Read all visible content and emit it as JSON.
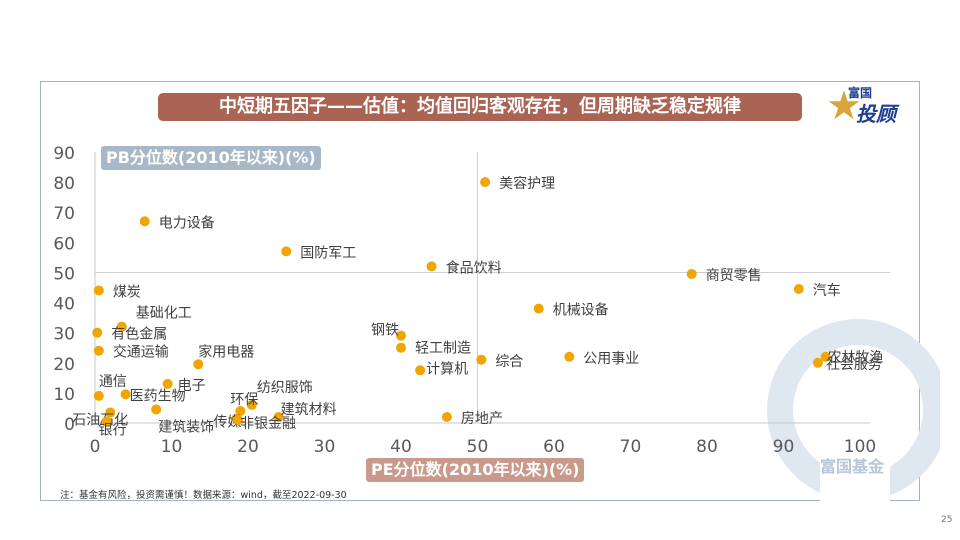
{
  "title": "中短期五因子——估值：均值回归客观存在，但周期缺乏稳定规律",
  "logo": {
    "top": "富国",
    "main": "投顾"
  },
  "footnote": "注：基金有风险，投资需谨慎！数据来源：wind，截至2022-09-30",
  "page_number": "25",
  "watermark_text": "富国基金",
  "colors": {
    "point": "#f0a500",
    "title_bg": "#a96454",
    "ylabel_bg": "#a8b8c8",
    "xlabel_bg": "#c99a8c"
  },
  "chart_data": {
    "type": "scatter",
    "xlabel": "PE分位数(2010年以来)(%)",
    "ylabel": "PB分位数(2010年以来)(%)",
    "xlim": [
      0,
      100
    ],
    "ylim": [
      0,
      90
    ],
    "x_ticks": [
      0,
      10,
      20,
      30,
      40,
      50,
      60,
      70,
      80,
      90,
      100
    ],
    "y_ticks": [
      0,
      10,
      20,
      30,
      40,
      50,
      60,
      70,
      80,
      90
    ],
    "reference_lines": {
      "x": 50,
      "y": 50
    },
    "grid": false,
    "points": [
      {
        "label": "美容护理",
        "x": 51,
        "y": 80
      },
      {
        "label": "电力设备",
        "x": 6.5,
        "y": 67
      },
      {
        "label": "国防军工",
        "x": 25,
        "y": 57
      },
      {
        "label": "食品饮料",
        "x": 44,
        "y": 52
      },
      {
        "label": "商贸零售",
        "x": 78,
        "y": 49.5
      },
      {
        "label": "汽车",
        "x": 92,
        "y": 44.5
      },
      {
        "label": "煤炭",
        "x": 0.5,
        "y": 44
      },
      {
        "label": "机械设备",
        "x": 58,
        "y": 38
      },
      {
        "label": "基础化工",
        "x": 3.5,
        "y": 32
      },
      {
        "label": "有色金属",
        "x": 0.3,
        "y": 30
      },
      {
        "label": "钢铁",
        "x": 40,
        "y": 29
      },
      {
        "label": "家用电器",
        "x": 13.5,
        "y": 19.5
      },
      {
        "label": "交通运输",
        "x": 0.5,
        "y": 24
      },
      {
        "label": "轻工制造",
        "x": 40,
        "y": 25
      },
      {
        "label": "综合",
        "x": 50.5,
        "y": 21
      },
      {
        "label": "公用事业",
        "x": 62,
        "y": 22
      },
      {
        "label": "农林牧渔",
        "x": 95.5,
        "y": 22
      },
      {
        "label": "社会服务",
        "x": 94.5,
        "y": 20
      },
      {
        "label": "计算机",
        "x": 42.5,
        "y": 17.5
      },
      {
        "label": "电子",
        "x": 9.5,
        "y": 13
      },
      {
        "label": "通信",
        "x": 0.5,
        "y": 9
      },
      {
        "label": "医药生物",
        "x": 4,
        "y": 9.5
      },
      {
        "label": "纺织服饰",
        "x": 20.5,
        "y": 6
      },
      {
        "label": "环保",
        "x": 19,
        "y": 4
      },
      {
        "label": "建筑材料",
        "x": 24,
        "y": 2
      },
      {
        "label": "石油石化",
        "x": 2,
        "y": 3.5
      },
      {
        "label": "传媒",
        "x": 18.5,
        "y": 1.5
      },
      {
        "label": "建筑装饰",
        "x": 8,
        "y": 4.5
      },
      {
        "label": "非银金融",
        "x": 18.7,
        "y": 1
      },
      {
        "label": "银行",
        "x": 1.5,
        "y": 0.5
      },
      {
        "label": "房地产",
        "x": 46,
        "y": 2
      }
    ]
  }
}
